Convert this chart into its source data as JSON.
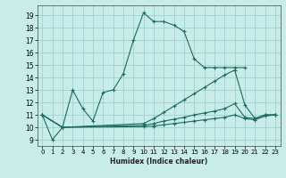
{
  "xlabel": "Humidex (Indice chaleur)",
  "xlim": [
    -0.5,
    23.5
  ],
  "ylim": [
    8.5,
    19.8
  ],
  "xtick_vals": [
    0,
    1,
    2,
    3,
    4,
    5,
    6,
    7,
    8,
    9,
    10,
    11,
    12,
    13,
    14,
    15,
    16,
    17,
    18,
    19,
    20,
    21,
    22,
    23
  ],
  "ytick_vals": [
    9,
    10,
    11,
    12,
    13,
    14,
    15,
    16,
    17,
    18,
    19
  ],
  "bg_color": "#c8ecea",
  "grid_color": "#a0d0ce",
  "line_color": "#1c6b5c",
  "curve1_x": [
    0,
    1,
    2,
    3,
    4,
    5,
    6,
    7,
    8,
    9,
    10,
    11,
    12,
    13,
    14,
    15,
    16,
    17,
    18,
    19,
    20
  ],
  "curve1_y": [
    11,
    9,
    10,
    13,
    11.5,
    10.5,
    12.8,
    13.0,
    14.3,
    17.0,
    19.2,
    18.5,
    18.5,
    18.2,
    17.7,
    15.5,
    14.8,
    14.8,
    14.8,
    14.8,
    14.8
  ],
  "curve2_x": [
    0,
    2,
    10,
    11,
    12,
    13,
    14,
    15,
    16,
    17,
    18,
    19,
    20,
    21,
    22,
    23
  ],
  "curve2_y": [
    11,
    10,
    10.3,
    10.7,
    11.2,
    11.7,
    12.2,
    12.7,
    13.2,
    13.7,
    14.2,
    14.6,
    11.8,
    10.7,
    11.0,
    11.0
  ],
  "curve3_x": [
    0,
    2,
    10,
    11,
    12,
    13,
    14,
    15,
    16,
    17,
    18,
    19,
    20,
    21,
    22,
    23
  ],
  "curve3_y": [
    11,
    10,
    10.15,
    10.3,
    10.5,
    10.65,
    10.8,
    11.0,
    11.15,
    11.3,
    11.5,
    11.9,
    10.8,
    10.7,
    11.0,
    11.0
  ],
  "curve4_x": [
    0,
    2,
    10,
    11,
    12,
    13,
    14,
    15,
    16,
    17,
    18,
    19,
    20,
    21,
    22,
    23
  ],
  "curve4_y": [
    11,
    10,
    10.05,
    10.1,
    10.2,
    10.3,
    10.4,
    10.5,
    10.6,
    10.7,
    10.8,
    11.0,
    10.7,
    10.6,
    10.9,
    11.0
  ]
}
